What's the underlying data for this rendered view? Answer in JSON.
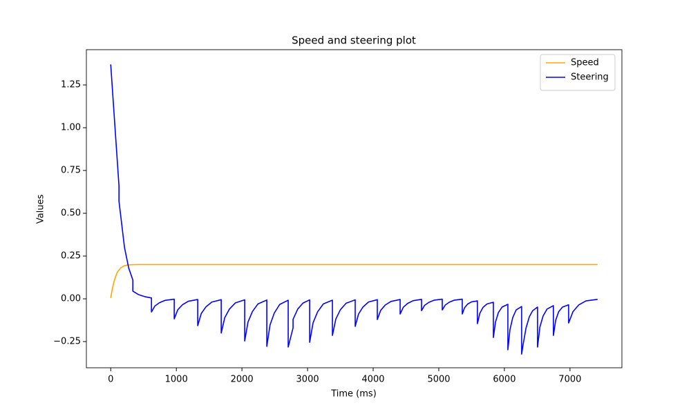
{
  "chart_data": {
    "type": "line",
    "title": "Speed and steering plot",
    "x_label": "Time (ms)",
    "y_label": "Values",
    "xlim": [
      -371,
      7791
    ],
    "ylim": [
      -0.403,
      1.456
    ],
    "xticks": [
      0,
      1000,
      2000,
      3000,
      4000,
      5000,
      6000,
      7000
    ],
    "yticks": [
      {
        "value": -0.25,
        "label": "−0.25"
      },
      {
        "value": 0,
        "label": "0.00"
      },
      {
        "value": 0.25,
        "label": "0.25"
      },
      {
        "value": 0.5,
        "label": "0.50"
      },
      {
        "value": 0.75,
        "label": "0.75"
      },
      {
        "value": 1,
        "label": "1.00"
      },
      {
        "value": 1.25,
        "label": "1.25"
      }
    ],
    "legend": "upper right",
    "series": [
      {
        "name": "Speed",
        "color": "#ffa500",
        "x": [
          0,
          25,
          50,
          75,
          100,
          150,
          200,
          250,
          300,
          400,
          7420
        ],
        "values": [
          0.005,
          0.06,
          0.1,
          0.13,
          0.155,
          0.18,
          0.192,
          0.197,
          0.199,
          0.2,
          0.2
        ]
      },
      {
        "name": "Steering",
        "color": "#0000ff",
        "x": [
          0,
          53,
          126,
          126,
          210,
          274,
          337,
          337,
          421,
          526,
          621,
          621,
          673,
          742,
          829,
          968,
          968,
          1022,
          1093,
          1183,
          1326,
          1326,
          1380,
          1451,
          1541,
          1684,
          1684,
          1738,
          1809,
          1899,
          2042,
          2042,
          2093,
          2160,
          2244,
          2379,
          2379,
          2428,
          2493,
          2575,
          2705,
          2705,
          2779,
          2779,
          2850,
          2930,
          3032,
          3032,
          3084,
          3153,
          3240,
          3379,
          3379,
          3431,
          3500,
          3587,
          3726,
          3726,
          3777,
          3844,
          3928,
          4063,
          4063,
          4115,
          4185,
          4272,
          4411,
          4411,
          4460,
          4525,
          4607,
          4737,
          4737,
          4784,
          4848,
          4927,
          5053,
          5053,
          5099,
          5160,
          5236,
          5358,
          5358,
          5393,
          5439,
          5497,
          5589,
          5589,
          5625,
          5674,
          5735,
          5832,
          5832,
          5865,
          5909,
          5965,
          6053,
          6053,
          6085,
          6127,
          6179,
          6263,
          6263,
          6284,
          6330,
          6380,
          6430,
          6505,
          6505,
          6541,
          6590,
          6650,
          6747,
          6747,
          6782,
          6828,
          6886,
          6979,
          6979,
          7045,
          7133,
          7243,
          7420
        ],
        "values": [
          1.37,
          1.07,
          0.66,
          0.57,
          0.3,
          0.18,
          0.11,
          0.045,
          0.025,
          0.012,
          0.005,
          -0.077,
          -0.042,
          -0.023,
          -0.009,
          -0.002,
          -0.117,
          -0.064,
          -0.035,
          -0.014,
          -0.004,
          -0.157,
          -0.086,
          -0.047,
          -0.019,
          -0.005,
          -0.2,
          -0.11,
          -0.06,
          -0.024,
          -0.006,
          -0.246,
          -0.135,
          -0.074,
          -0.03,
          -0.007,
          -0.278,
          -0.153,
          -0.083,
          -0.033,
          -0.008,
          -0.282,
          -0.17,
          -0.12,
          -0.06,
          -0.025,
          -0.006,
          -0.254,
          -0.14,
          -0.076,
          -0.03,
          -0.008,
          -0.214,
          -0.118,
          -0.064,
          -0.026,
          -0.006,
          -0.161,
          -0.089,
          -0.048,
          -0.019,
          -0.005,
          -0.121,
          -0.067,
          -0.036,
          -0.015,
          -0.004,
          -0.089,
          -0.049,
          -0.027,
          -0.011,
          -0.003,
          -0.069,
          -0.038,
          -0.021,
          -0.008,
          -0.002,
          -0.065,
          -0.036,
          -0.02,
          -0.008,
          -0.002,
          -0.089,
          -0.052,
          -0.031,
          -0.018,
          -0.012,
          -0.145,
          -0.085,
          -0.05,
          -0.03,
          -0.02,
          -0.226,
          -0.135,
          -0.08,
          -0.048,
          -0.032,
          -0.298,
          -0.18,
          -0.11,
          -0.065,
          -0.045,
          -0.323,
          -0.27,
          -0.17,
          -0.105,
          -0.07,
          -0.048,
          -0.282,
          -0.165,
          -0.1,
          -0.06,
          -0.04,
          -0.214,
          -0.125,
          -0.075,
          -0.048,
          -0.035,
          -0.141,
          -0.075,
          -0.036,
          -0.012,
          -0.003
        ]
      }
    ]
  }
}
